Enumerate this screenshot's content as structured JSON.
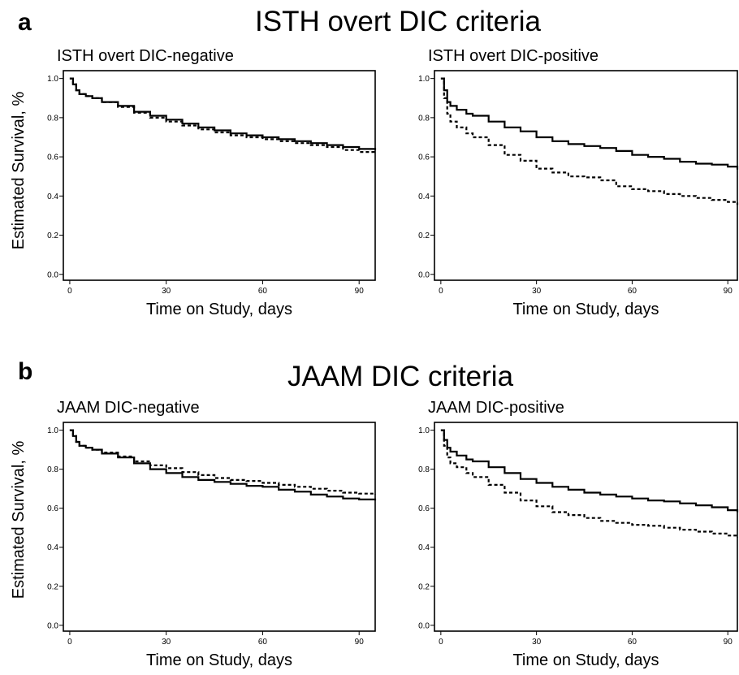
{
  "panels": [
    {
      "letter": "a",
      "title": "ISTH overt DIC criteria"
    },
    {
      "letter": "b",
      "title": "JAAM DIC criteria"
    }
  ],
  "shared_ylabel": "Estimated Survival, %",
  "chart_data": [
    {
      "type": "line",
      "title": "ISTH overt DIC-negative",
      "xlabel": "Time on Study, days",
      "ylabel": "Estimated Survival, %",
      "xlim": [
        -2,
        95
      ],
      "ylim": [
        -0.03,
        1.04
      ],
      "xticks": [
        0,
        30,
        60,
        90
      ],
      "yticks": [
        0.0,
        0.2,
        0.4,
        0.6,
        0.8,
        1.0
      ],
      "grid": false,
      "series": [
        {
          "style": "solid",
          "x": [
            0,
            1,
            2,
            3,
            5,
            7,
            10,
            15,
            20,
            25,
            30,
            35,
            40,
            45,
            50,
            55,
            60,
            65,
            70,
            75,
            80,
            85,
            90,
            95
          ],
          "y": [
            1.0,
            0.97,
            0.94,
            0.92,
            0.91,
            0.9,
            0.88,
            0.86,
            0.83,
            0.81,
            0.79,
            0.77,
            0.75,
            0.735,
            0.72,
            0.71,
            0.7,
            0.69,
            0.68,
            0.67,
            0.66,
            0.65,
            0.64,
            0.635
          ]
        },
        {
          "style": "dashed",
          "x": [
            0,
            1,
            2,
            3,
            5,
            7,
            10,
            15,
            20,
            25,
            30,
            35,
            40,
            45,
            50,
            55,
            60,
            65,
            70,
            75,
            80,
            85,
            90,
            95
          ],
          "y": [
            1.0,
            0.97,
            0.94,
            0.92,
            0.91,
            0.9,
            0.88,
            0.855,
            0.825,
            0.8,
            0.78,
            0.76,
            0.74,
            0.725,
            0.71,
            0.7,
            0.69,
            0.68,
            0.67,
            0.66,
            0.65,
            0.635,
            0.625,
            0.615
          ]
        }
      ]
    },
    {
      "type": "line",
      "title": "ISTH overt DIC-positive",
      "xlabel": "Time on Study, days",
      "ylabel": "Estimated Survival, %",
      "xlim": [
        -2,
        93
      ],
      "ylim": [
        -0.03,
        1.04
      ],
      "xticks": [
        0,
        30,
        60,
        90
      ],
      "yticks": [
        0.0,
        0.2,
        0.4,
        0.6,
        0.8,
        1.0
      ],
      "grid": false,
      "series": [
        {
          "style": "solid",
          "x": [
            0,
            1,
            2,
            3,
            5,
            8,
            10,
            15,
            20,
            25,
            30,
            35,
            40,
            45,
            50,
            55,
            60,
            65,
            70,
            75,
            80,
            85,
            90,
            93
          ],
          "y": [
            1.0,
            0.94,
            0.88,
            0.86,
            0.84,
            0.82,
            0.81,
            0.78,
            0.75,
            0.73,
            0.7,
            0.68,
            0.665,
            0.655,
            0.645,
            0.63,
            0.61,
            0.6,
            0.59,
            0.575,
            0.565,
            0.56,
            0.55,
            0.535
          ]
        },
        {
          "style": "dashed",
          "x": [
            0,
            1,
            2,
            3,
            5,
            8,
            10,
            15,
            20,
            25,
            30,
            35,
            40,
            45,
            50,
            55,
            60,
            65,
            70,
            75,
            80,
            85,
            90,
            93
          ],
          "y": [
            1.0,
            0.9,
            0.82,
            0.78,
            0.75,
            0.72,
            0.7,
            0.66,
            0.61,
            0.58,
            0.54,
            0.52,
            0.5,
            0.495,
            0.48,
            0.45,
            0.435,
            0.425,
            0.41,
            0.4,
            0.39,
            0.38,
            0.37,
            0.355
          ]
        }
      ]
    },
    {
      "type": "line",
      "title": "JAAM DIC-negative",
      "xlabel": "Time on Study, days",
      "ylabel": "Estimated Survival, %",
      "xlim": [
        -2,
        95
      ],
      "ylim": [
        -0.03,
        1.04
      ],
      "xticks": [
        0,
        30,
        60,
        90
      ],
      "yticks": [
        0.0,
        0.2,
        0.4,
        0.6,
        0.8,
        1.0
      ],
      "grid": false,
      "series": [
        {
          "style": "solid",
          "x": [
            0,
            1,
            2,
            3,
            5,
            7,
            10,
            15,
            20,
            25,
            30,
            35,
            40,
            45,
            50,
            55,
            60,
            65,
            70,
            75,
            80,
            85,
            90,
            95
          ],
          "y": [
            1.0,
            0.97,
            0.94,
            0.92,
            0.91,
            0.9,
            0.88,
            0.86,
            0.83,
            0.8,
            0.78,
            0.76,
            0.745,
            0.735,
            0.725,
            0.715,
            0.71,
            0.695,
            0.685,
            0.67,
            0.66,
            0.65,
            0.645,
            0.64
          ]
        },
        {
          "style": "dashed",
          "x": [
            0,
            1,
            2,
            3,
            5,
            7,
            10,
            15,
            20,
            25,
            30,
            35,
            40,
            45,
            50,
            55,
            60,
            65,
            70,
            75,
            80,
            85,
            90,
            95
          ],
          "y": [
            1.0,
            0.97,
            0.94,
            0.92,
            0.91,
            0.9,
            0.885,
            0.865,
            0.84,
            0.82,
            0.805,
            0.785,
            0.77,
            0.755,
            0.745,
            0.74,
            0.73,
            0.72,
            0.71,
            0.7,
            0.69,
            0.68,
            0.675,
            0.67
          ]
        }
      ]
    },
    {
      "type": "line",
      "title": "JAAM DIC-positive",
      "xlabel": "Time on Study, days",
      "ylabel": "Estimated Survival, %",
      "xlim": [
        -2,
        93
      ],
      "ylim": [
        -0.03,
        1.04
      ],
      "xticks": [
        0,
        30,
        60,
        90
      ],
      "yticks": [
        0.0,
        0.2,
        0.4,
        0.6,
        0.8,
        1.0
      ],
      "grid": false,
      "series": [
        {
          "style": "solid",
          "x": [
            0,
            1,
            2,
            3,
            5,
            8,
            10,
            15,
            20,
            25,
            30,
            35,
            40,
            45,
            50,
            55,
            60,
            65,
            70,
            75,
            80,
            85,
            90,
            93
          ],
          "y": [
            1.0,
            0.95,
            0.91,
            0.89,
            0.87,
            0.85,
            0.84,
            0.81,
            0.78,
            0.75,
            0.73,
            0.71,
            0.695,
            0.68,
            0.67,
            0.66,
            0.65,
            0.64,
            0.635,
            0.625,
            0.615,
            0.605,
            0.59,
            0.58
          ]
        },
        {
          "style": "dashed",
          "x": [
            0,
            1,
            2,
            3,
            5,
            8,
            10,
            15,
            20,
            25,
            30,
            35,
            40,
            45,
            50,
            55,
            60,
            65,
            70,
            75,
            80,
            85,
            90,
            93
          ],
          "y": [
            1.0,
            0.92,
            0.86,
            0.83,
            0.81,
            0.78,
            0.76,
            0.72,
            0.68,
            0.64,
            0.61,
            0.58,
            0.565,
            0.55,
            0.535,
            0.525,
            0.515,
            0.51,
            0.5,
            0.49,
            0.48,
            0.47,
            0.46,
            0.45
          ]
        }
      ]
    }
  ]
}
